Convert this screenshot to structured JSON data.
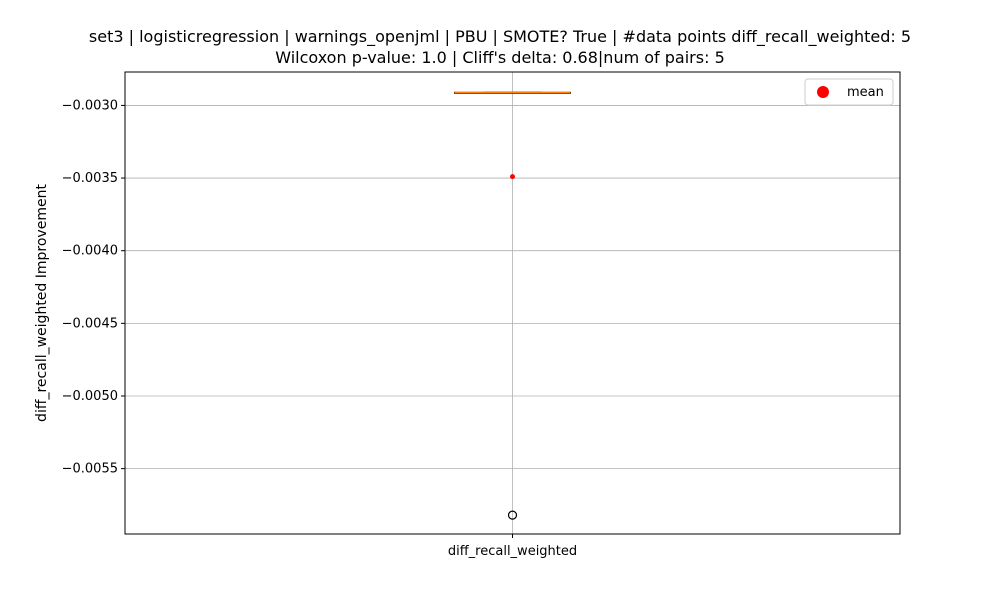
{
  "chart_data": {
    "type": "box",
    "title": "set3 | logisticregression | warnings_openjml | PBU | SMOTE? True | #data points diff_recall_weighted: 5",
    "subtitle": "Wilcoxon p-value: 1.0 | Cliff's delta: 0.68|num of pairs: 5",
    "xlabel": "",
    "ylabel": "diff_recall_weighted Improvement",
    "categories": [
      "diff_recall_weighted"
    ],
    "ylim": [
      -0.00595,
      -0.00277
    ],
    "y_ticks": [
      -0.003,
      -0.0035,
      -0.004,
      -0.0045,
      -0.005,
      -0.0055
    ],
    "y_tick_labels": [
      "−0.0030",
      "−0.0035",
      "−0.0040",
      "−0.0045",
      "−0.0050",
      "−0.0055"
    ],
    "grid": true,
    "box": {
      "q1": -0.00291,
      "median": -0.00291,
      "q3": -0.00291,
      "whisker_low": -0.00291,
      "whisker_high": -0.00291,
      "mean": -0.00349,
      "outliers": [
        -0.00582
      ]
    },
    "legend": {
      "position": "top-right",
      "entries": [
        "mean"
      ]
    },
    "colors": {
      "median": "#ff7f0e",
      "mean": "#ff0000",
      "grid": "#b0b0b0",
      "box": "#000000"
    }
  }
}
